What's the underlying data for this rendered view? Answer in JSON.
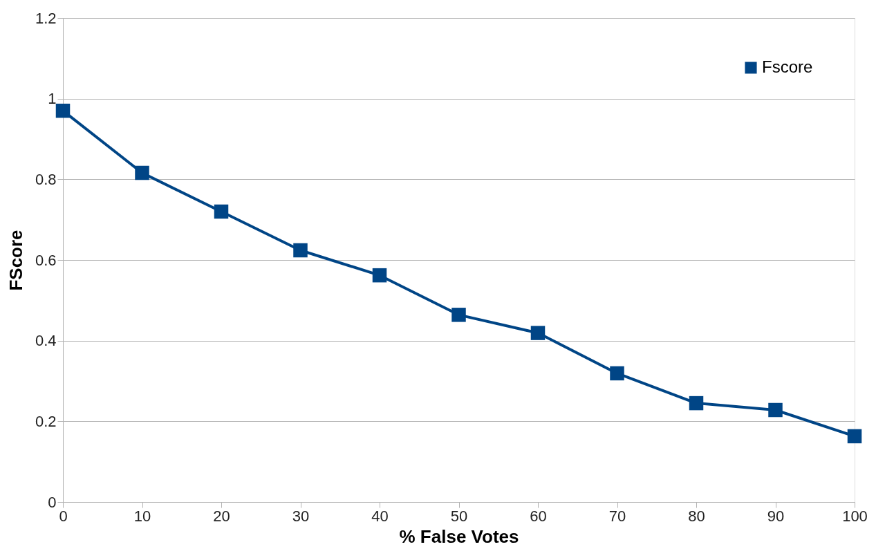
{
  "chart_data": {
    "type": "line",
    "xlabel": "% False Votes",
    "ylabel": "FScore",
    "x": [
      0,
      10,
      20,
      30,
      40,
      50,
      60,
      70,
      80,
      90,
      100
    ],
    "series": [
      {
        "name": "Fscore",
        "color": "#004586",
        "values": [
          0.97,
          0.816,
          0.72,
          0.624,
          0.562,
          0.464,
          0.419,
          0.319,
          0.245,
          0.228,
          0.163
        ]
      }
    ],
    "xlim": [
      0,
      100
    ],
    "xticks": [
      0,
      10,
      20,
      30,
      40,
      50,
      60,
      70,
      80,
      90,
      100
    ],
    "ylim": [
      0,
      1.2
    ],
    "yticks": [
      0,
      0.2,
      0.4,
      0.6,
      0.8,
      1,
      1.2
    ],
    "grid": "y",
    "legend": "top right",
    "marker": "square",
    "line_style": "solid"
  }
}
